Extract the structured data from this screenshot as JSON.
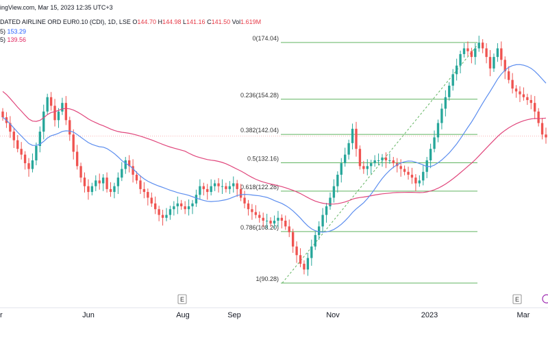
{
  "header": {
    "top": "ingView.com, Mar 15, 2023 12:35 UTC+3",
    "symbol": "DATED AIRLINE ORD EUR0.10 (CDI), 1D, LSE",
    "o_label": "O",
    "o_value": "144.70",
    "h_label": "H",
    "h_value": "144.98",
    "l_label": "L",
    "l_value": "141.16",
    "c_label": "C",
    "c_value": "141.50",
    "vol_label": "Vol",
    "vol_value": "1.619M",
    "ma1_prefix": "5)",
    "ma1_value": "153.29",
    "ma2_prefix": "5)",
    "ma2_value": "139.56"
  },
  "colors": {
    "up": "#26a69a",
    "down": "#ef5350",
    "ma_fast": "#5b8def",
    "ma_slow": "#e0457b",
    "fib": "#5fb35f",
    "trend": "#5fb35f"
  },
  "chart_data": {
    "type": "candlestick",
    "x_tick_labels": [
      "r",
      "Jun",
      "Aug",
      "Sep",
      "Nov",
      "2023",
      "Mar"
    ],
    "event_markers": [
      "E",
      "E"
    ],
    "fibonacci": [
      {
        "ratio": "0",
        "price": 174.04,
        "label": "0(174.04)"
      },
      {
        "ratio": "0.236",
        "price": 154.28,
        "label": "0.236(154.28)"
      },
      {
        "ratio": "0.382",
        "price": 142.04,
        "label": "0.382(142.04)"
      },
      {
        "ratio": "0.5",
        "price": 132.16,
        "label": "0.5(132.16)"
      },
      {
        "ratio": "0.618",
        "price": 122.28,
        "label": "0.618(122.28)"
      },
      {
        "ratio": "0.786",
        "price": 108.2,
        "label": "0.786(108.20)"
      },
      {
        "ratio": "1",
        "price": 90.28,
        "label": "1(90.28)"
      }
    ],
    "trend_from": 90.28,
    "trend_to": 174.04,
    "last_close": 141.5,
    "ma_fast_last": 153.29,
    "ma_slow_last": 139.56,
    "closes": [
      148,
      146,
      143,
      140,
      137,
      135,
      132,
      130,
      133,
      138,
      143,
      150,
      155,
      152,
      147,
      150,
      153,
      147,
      142,
      136,
      131,
      127,
      124,
      122,
      124,
      126,
      125,
      127,
      123,
      122,
      124,
      127,
      130,
      133,
      131,
      128,
      126,
      123,
      122,
      120,
      118,
      116,
      114,
      113,
      114,
      116,
      117,
      118,
      117,
      116,
      117,
      118,
      121,
      124,
      123,
      122,
      124,
      125,
      124,
      124,
      123,
      124,
      125,
      123,
      120,
      118,
      116,
      115,
      114,
      113,
      112,
      112,
      111,
      112,
      113,
      112,
      110,
      108,
      103,
      100,
      97,
      95,
      99,
      103,
      107,
      110,
      114,
      117,
      120,
      124,
      128,
      132,
      135,
      139,
      144,
      137,
      131,
      130,
      131,
      132,
      133,
      133,
      134,
      133,
      133,
      132,
      131,
      130,
      129,
      128,
      127,
      125,
      126,
      129,
      133,
      137,
      141,
      146,
      151,
      155,
      159,
      163,
      166,
      170,
      172,
      171,
      169,
      172,
      174,
      172,
      169,
      165,
      169,
      172,
      168,
      164,
      161,
      158,
      157,
      156,
      155,
      154,
      153,
      150,
      146,
      142,
      141
    ]
  }
}
